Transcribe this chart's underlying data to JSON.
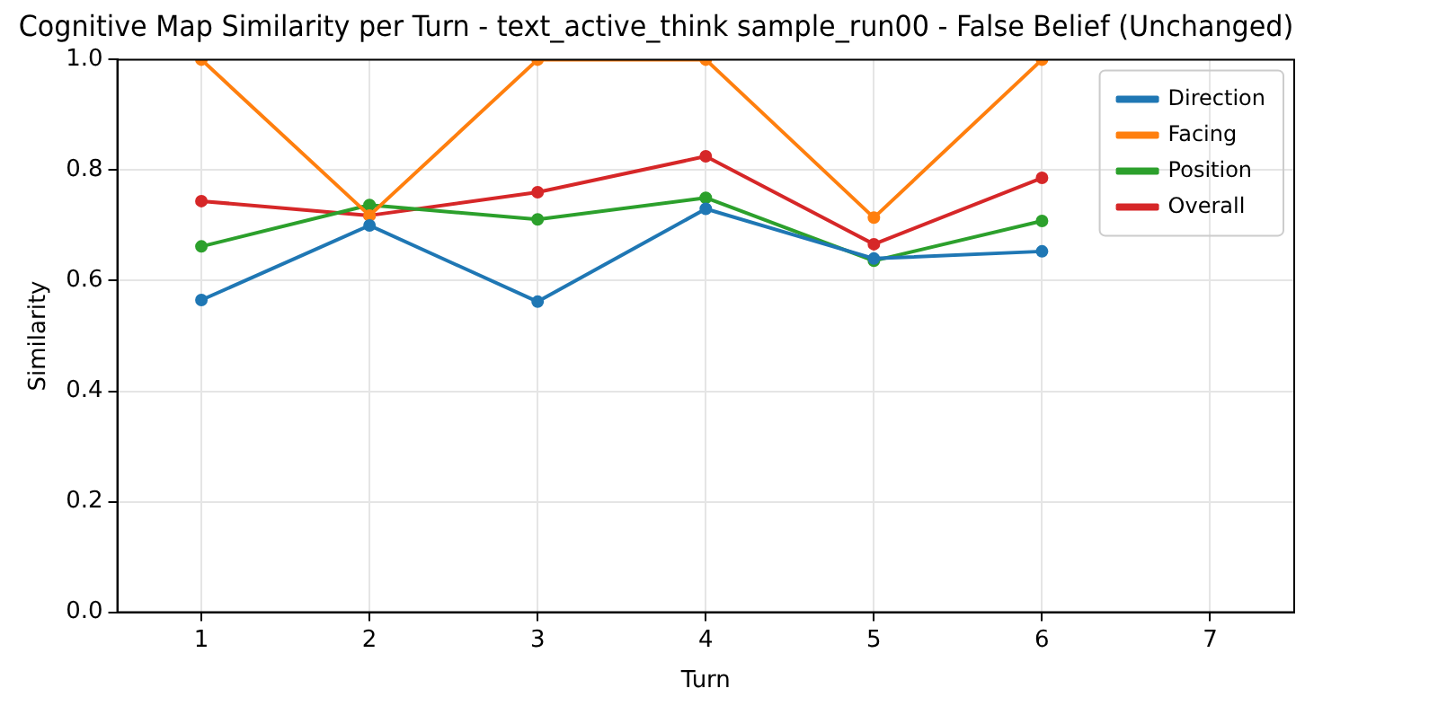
{
  "chart_data": {
    "type": "line",
    "title": "Cognitive Map Similarity per Turn - text_active_think sample_run00 - False Belief (Unchanged)",
    "xlabel": "Turn",
    "ylabel": "Similarity",
    "x": [
      1,
      2,
      3,
      4,
      5,
      6
    ],
    "series": [
      {
        "name": "Direction",
        "color": "#1f77b4",
        "values": [
          0.565,
          0.7,
          0.562,
          0.73,
          0.64,
          0.653
        ]
      },
      {
        "name": "Facing",
        "color": "#ff7f0e",
        "values": [
          1.0,
          0.718,
          1.0,
          1.0,
          0.714,
          1.0
        ]
      },
      {
        "name": "Position",
        "color": "#2ca02c",
        "values": [
          0.662,
          0.737,
          0.711,
          0.75,
          0.636,
          0.708
        ]
      },
      {
        "name": "Overall",
        "color": "#d62728",
        "values": [
          0.744,
          0.718,
          0.76,
          0.825,
          0.666,
          0.786
        ]
      }
    ],
    "xlim": [
      0.5,
      7.5
    ],
    "xticks": [
      1,
      2,
      3,
      4,
      5,
      6,
      7
    ],
    "ylim": [
      0,
      1
    ],
    "yticks": [
      {
        "value": 0,
        "label": "0.0"
      },
      0.2,
      0.4,
      0.6,
      0.8,
      {
        "value": 1,
        "label": "1.0"
      }
    ],
    "grid": true,
    "legend": "top right",
    "marker": "circle",
    "line_style": "solid"
  }
}
